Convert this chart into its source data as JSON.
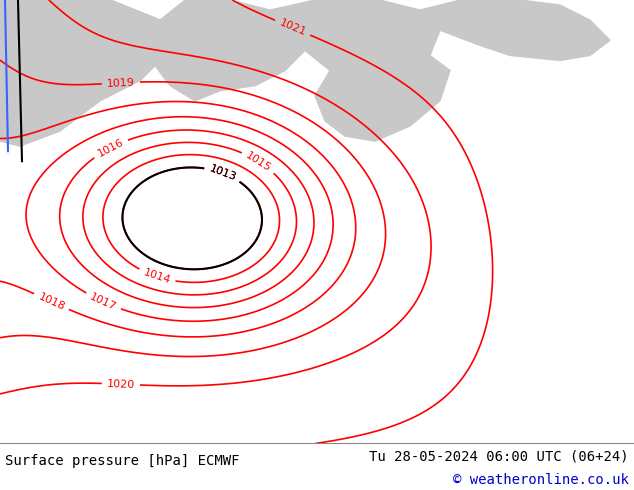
{
  "bottom_left_text": "Surface pressure [hPa] ECMWF",
  "bottom_right_text": "Tu 28-05-2024 06:00 UTC (06+24)",
  "copyright_text": "© weatheronline.co.uk",
  "bg_color": "#c8e89a",
  "sea_color": "#c8c8c8",
  "isobar_color_red": "#ff0000",
  "isobar_color_black": "#000000",
  "text_color_bottom": "#000000",
  "text_color_copyright": "#0000cc",
  "font_size_bottom": 10,
  "fig_width": 6.34,
  "fig_height": 4.9,
  "dpi": 100
}
